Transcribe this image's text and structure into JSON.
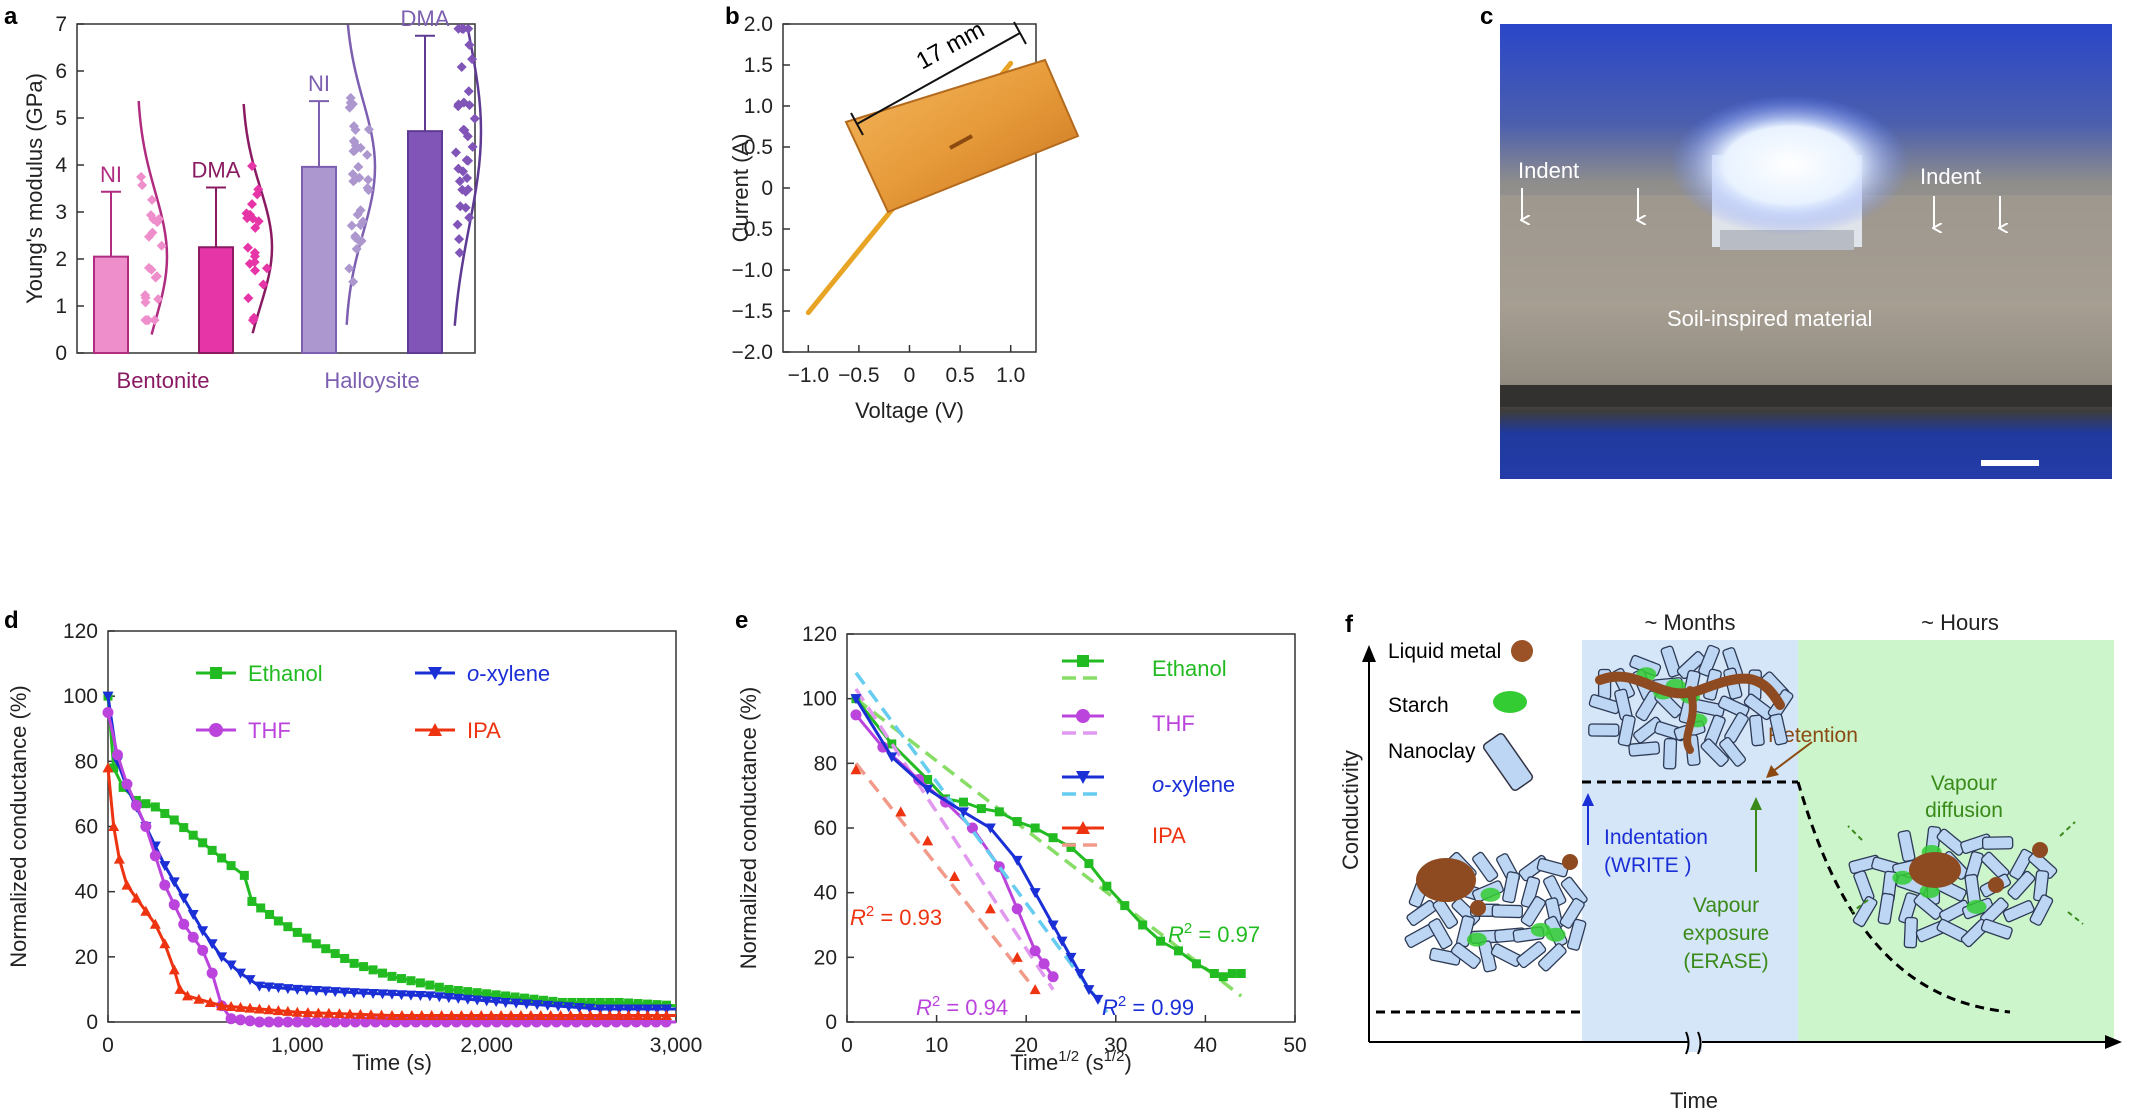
{
  "panels": {
    "a": "a",
    "b": "b",
    "c": "c",
    "d": "d",
    "e": "e",
    "f": "f"
  },
  "chart_data": [
    {
      "id": "a",
      "type": "bar",
      "ylabel": "Young's modulus (GPa)",
      "ylim": [
        0,
        7
      ],
      "yticks": [
        "0",
        "1",
        "2",
        "3",
        "4",
        "5",
        "6",
        "7"
      ],
      "group_labels": [
        "Bentonite",
        "Halloysite"
      ],
      "bars": [
        {
          "group": "Bentonite",
          "label": "NI",
          "value": 2.05,
          "error": 1.38,
          "color": "#ee8fcb",
          "border": "#b02c80"
        },
        {
          "group": "Bentonite",
          "label": "DMA",
          "value": 2.25,
          "error": 1.27,
          "color": "#e635a7",
          "border": "#8a1a62"
        },
        {
          "group": "Halloysite",
          "label": "NI",
          "value": 3.96,
          "error": 1.4,
          "color": "#ad97cf",
          "border": "#7c5fb0"
        },
        {
          "group": "Halloysite",
          "label": "DMA",
          "value": 4.72,
          "error": 2.03,
          "color": "#8055b7",
          "border": "#5e3a93"
        }
      ],
      "label_colors": [
        "#b02c80",
        "#8a1a62",
        "#7c5fb0",
        "#7c5fb0"
      ],
      "group_colors": [
        "#8a1a62",
        "#7c5fb0"
      ]
    },
    {
      "id": "b",
      "type": "line",
      "xlabel": "Voltage (V)",
      "ylabel": "Current (A)",
      "xlim": [
        -1.25,
        1.25
      ],
      "ylim": [
        -2.0,
        2.0
      ],
      "xticks": [
        -1.0,
        -0.5,
        0,
        0.5,
        1.0
      ],
      "xtick_labels": [
        "−1.0",
        "−0.5",
        "0",
        "0.5",
        "1.0"
      ],
      "yticks": [
        2.0,
        1.5,
        1.0,
        0.5,
        0,
        -0.5,
        -1.0,
        -1.5,
        -2.0
      ],
      "ytick_labels": [
        "2.0",
        "1.5",
        "1.0",
        "0.5",
        "0",
        "−0.5",
        "−1.0",
        "−1.5",
        "−2.0"
      ],
      "series": [
        {
          "x": [
            -1.0,
            1.0
          ],
          "y": [
            -1.52,
            1.52
          ],
          "color": "#e7a425"
        }
      ],
      "inset_annotation": "17 mm"
    },
    {
      "id": "d",
      "type": "line",
      "xlabel": "Time (s)",
      "ylabel": "Normalized conductance (%)",
      "xlim": [
        0,
        3000
      ],
      "ylim": [
        0,
        120
      ],
      "xticks": [
        0,
        1000,
        2000,
        3000
      ],
      "xtick_labels": [
        "0",
        "1,000",
        "2,000",
        "3,000"
      ],
      "yticks": [
        0,
        20,
        40,
        60,
        80,
        100,
        120
      ],
      "series": [
        {
          "name": "Ethanol",
          "color": "#22bb22",
          "marker": "square",
          "x": [
            0,
            30,
            80,
            150,
            250,
            350,
            500,
            650,
            720,
            760,
            900,
            1100,
            1300,
            1500,
            1800,
            2100,
            2400,
            2700,
            3000
          ],
          "y": [
            100,
            78,
            72,
            68,
            66,
            62,
            55,
            48,
            45,
            37,
            31,
            24,
            18,
            14,
            10,
            8,
            6,
            6,
            5
          ]
        },
        {
          "name": "o-xylene",
          "color": "#1a2fd6",
          "marker": "triangle-down",
          "x": [
            0,
            50,
            100,
            200,
            300,
            400,
            500,
            600,
            700,
            800,
            1000,
            1300,
            1700,
            2100,
            2600,
            3000
          ],
          "y": [
            100,
            80,
            72,
            60,
            48,
            38,
            28,
            20,
            15,
            11,
            10,
            9,
            8,
            6,
            4,
            4
          ]
        },
        {
          "name": "THF",
          "color": "#bb44dd",
          "marker": "circle",
          "x": [
            0,
            50,
            100,
            200,
            300,
            400,
            500,
            550,
            600,
            650,
            800,
            1200,
            2000,
            3000
          ],
          "y": [
            95,
            82,
            73,
            60,
            42,
            30,
            22,
            15,
            5,
            1,
            0,
            0,
            0,
            0
          ]
        },
        {
          "name": "IPA",
          "color": "#ee3311",
          "marker": "triangle-up",
          "x": [
            0,
            30,
            60,
            100,
            150,
            200,
            250,
            300,
            350,
            380,
            420,
            600,
            1000,
            1500,
            2600,
            3000
          ],
          "y": [
            78,
            60,
            50,
            42,
            38,
            34,
            30,
            24,
            16,
            10,
            8,
            5,
            3,
            2,
            2,
            2
          ]
        }
      ],
      "legend": [
        {
          "label_prefix": "",
          "label_italic": "",
          "label": "Ethanol",
          "color": "#22bb22"
        },
        {
          "label_prefix": "",
          "label_italic": "o",
          "label": "-xylene",
          "color": "#1a2fd6"
        },
        {
          "label_prefix": "",
          "label_italic": "",
          "label": "THF",
          "color": "#bb44dd"
        },
        {
          "label_prefix": "",
          "label_italic": "",
          "label": "IPA",
          "color": "#ee3311"
        }
      ]
    },
    {
      "id": "e",
      "type": "line",
      "xlabel_base": "Time",
      "xlabel_sup": "1/2",
      "xlabel_unit": " (s",
      "xlabel_unit_sup": "1/2",
      "xlabel_close": ")",
      "ylabel": "Normalized conductance (%)",
      "xlim": [
        0,
        50
      ],
      "ylim": [
        0,
        120
      ],
      "xticks": [
        0,
        10,
        20,
        30,
        40,
        50
      ],
      "yticks": [
        0,
        20,
        40,
        60,
        80,
        100,
        120
      ],
      "series": [
        {
          "name": "Ethanol",
          "color": "#22bb22",
          "fit_color": "#88dd66",
          "marker": "square",
          "x": [
            1,
            5,
            9,
            11,
            13,
            15,
            17,
            19,
            21,
            23,
            25,
            27,
            29,
            31,
            33,
            35,
            37,
            39,
            41,
            42,
            43,
            44
          ],
          "y": [
            100,
            86,
            75,
            69,
            68,
            66,
            65,
            62,
            60,
            57,
            54,
            49,
            42,
            36,
            30,
            25,
            22,
            18,
            15,
            14,
            15,
            15
          ],
          "fit": [
            [
              1,
              100
            ],
            [
              44,
              8
            ]
          ],
          "r2": "0.97"
        },
        {
          "name": "THF",
          "color": "#bb44dd",
          "fit_color": "#e199ef",
          "marker": "circle",
          "x": [
            1,
            4,
            8,
            11,
            14,
            17,
            19,
            21,
            22,
            23
          ],
          "y": [
            95,
            85,
            75,
            68,
            60,
            48,
            35,
            22,
            18,
            14
          ],
          "fit": [
            [
              1,
              103
            ],
            [
              23,
              10
            ]
          ],
          "r2": "0.94"
        },
        {
          "name": "o-xylene",
          "color": "#1a2fd6",
          "fit_color": "#66ccf0",
          "marker": "triangle-down",
          "x": [
            1,
            5,
            9,
            13,
            16,
            19,
            21,
            23,
            24,
            25,
            26,
            27,
            28
          ],
          "y": [
            100,
            82,
            72,
            65,
            60,
            50,
            40,
            30,
            25,
            20,
            15,
            10,
            7
          ],
          "fit": [
            [
              1,
              108
            ],
            [
              29,
              3
            ]
          ],
          "r2": "0.99"
        },
        {
          "name": "IPA",
          "color": "#ee3311",
          "fit_color": "#f19a8a",
          "marker": "triangle-up",
          "x": [
            1,
            6,
            9,
            12,
            16,
            19,
            21
          ],
          "y": [
            78,
            65,
            56,
            45,
            35,
            20,
            10
          ],
          "fit": [
            [
              1,
              80
            ],
            [
              21,
              10
            ]
          ],
          "r2": "0.93"
        }
      ],
      "legend": [
        {
          "label_italic": "",
          "label": "Ethanol",
          "color": "#22bb22",
          "fit_color": "#88dd66"
        },
        {
          "label_italic": "",
          "label": "THF",
          "color": "#bb44dd",
          "fit_color": "#e199ef"
        },
        {
          "label_italic": "o",
          "label": "-xylene",
          "color": "#1a2fd6",
          "fit_color": "#66ccf0"
        },
        {
          "label_italic": "",
          "label": "IPA",
          "color": "#ee3311",
          "fit_color": "#f19a8a"
        }
      ],
      "r2_prefix": "R",
      "r2_sup": "2",
      "r2_eq": " = "
    }
  ],
  "photo_c": {
    "indent_left": "Indent",
    "indent_right": "Indent",
    "caption": "Soil-inspired material"
  },
  "schematic_f": {
    "ylabel": "Conductivity",
    "xlabel": "Time",
    "months": "~ Months",
    "hours": "~ Hours",
    "legend_liquid_metal": "Liquid metal",
    "legend_starch": "Starch",
    "legend_nanoclay": "Nanoclay",
    "retention": "Retention",
    "indentation": "Indentation",
    "write": "(WRITE )",
    "vapour_exposure_1": "Vapour",
    "vapour_exposure_2": "exposure",
    "erase": "(ERASE)",
    "vapour_diffusion_1": "Vapour",
    "vapour_diffusion_2": "diffusion",
    "colors": {
      "blue_region": "#d5e6f8",
      "green_region": "#ccf5cc",
      "write": "#1a2fd6",
      "vapour": "#3a8a1a",
      "retention": "#8b4a12"
    }
  }
}
